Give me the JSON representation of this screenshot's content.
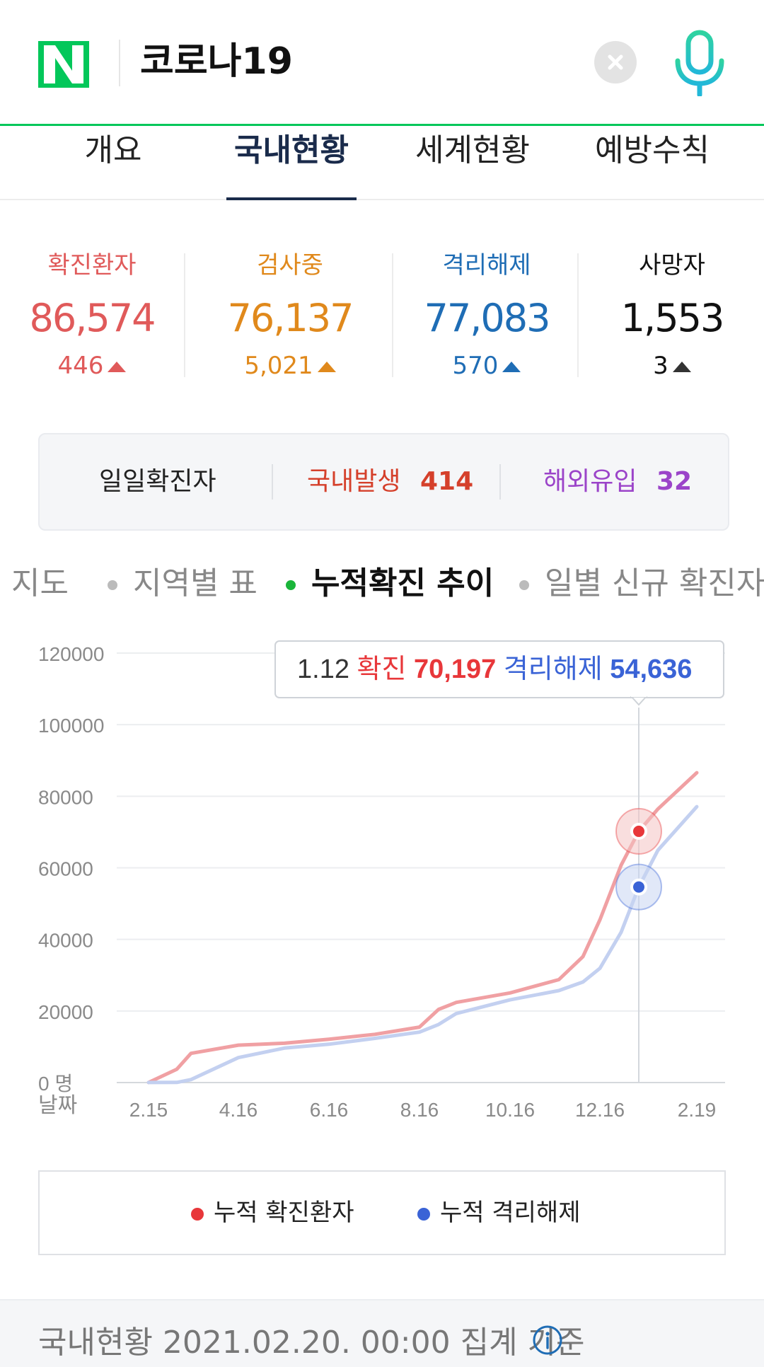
{
  "header": {
    "logo_letter": "N",
    "query": "코로나19",
    "clear_icon": "close-icon",
    "mic_icon": "microphone-icon",
    "accent": "#03c75a"
  },
  "tabs": [
    {
      "label": "개요"
    },
    {
      "label": "국내현황"
    },
    {
      "label": "세계현황"
    },
    {
      "label": "예방수칙"
    }
  ],
  "stats": [
    {
      "label": "확진환자",
      "value": "86,574",
      "delta": "446",
      "color": "#e05a5a"
    },
    {
      "label": "검사중",
      "value": "76,137",
      "delta": "5,021",
      "color": "#e0891c"
    },
    {
      "label": "격리해제",
      "value": "77,083",
      "delta": "570",
      "color": "#1f6db5"
    },
    {
      "label": "사망자",
      "value": "1,553",
      "delta": "3",
      "color": "#111111"
    }
  ],
  "daily": {
    "label": "일일확진자",
    "domestic_label": "국내발생",
    "domestic_value": "414",
    "overseas_label": "해외유입",
    "overseas_value": "32"
  },
  "chips": [
    {
      "label": "지도"
    },
    {
      "label": "지역별 표"
    },
    {
      "label": "누적확진 추이"
    },
    {
      "label": "일별 신규 확진자"
    }
  ],
  "chart_data": {
    "type": "line",
    "y_unit": "명",
    "x_unit": "날짜",
    "ylim": [
      0,
      120000
    ],
    "y_ticks": [
      "120000",
      "100000",
      "80000",
      "60000",
      "40000",
      "20000",
      "0"
    ],
    "x_ticks": [
      "2.15",
      "4.16",
      "6.16",
      "8.16",
      "10.16",
      "12.16",
      "2.19"
    ],
    "x": [
      "2.15",
      "3.1",
      "3.15",
      "4.16",
      "5.15",
      "6.16",
      "7.15",
      "8.16",
      "9.1",
      "9.15",
      "10.16",
      "11.15",
      "12.1",
      "12.16",
      "1.1",
      "1.12",
      "1.25",
      "2.19"
    ],
    "series": [
      {
        "name": "누적 확진환자",
        "color": "#f0a0a3",
        "values": [
          28,
          3730,
          8160,
          10450,
          11000,
          12120,
          13480,
          15500,
          20450,
          22390,
          25040,
          28770,
          35160,
          45440,
          60740,
          70197,
          76430,
          86574
        ]
      },
      {
        "name": "누적 격리해제",
        "color": "#c3d0f0",
        "values": [
          16,
          30,
          830,
          6980,
          9630,
          10720,
          12350,
          14100,
          16240,
          19300,
          23120,
          25700,
          28100,
          31900,
          42000,
          54636,
          64900,
          77083
        ]
      }
    ],
    "tooltip": {
      "date": "1.12",
      "label1": "확진",
      "value1": "70,197",
      "label2": "격리해제",
      "value2": "54,636"
    },
    "grid": true
  },
  "legend": [
    {
      "label": "누적 확진환자",
      "color": "#e8373a"
    },
    {
      "label": "누적 격리해제",
      "color": "#3a63d6"
    }
  ],
  "footer": {
    "text": "국내현황 2021.02.20. 00:00 집계 기준",
    "info_icon": "info-icon"
  }
}
